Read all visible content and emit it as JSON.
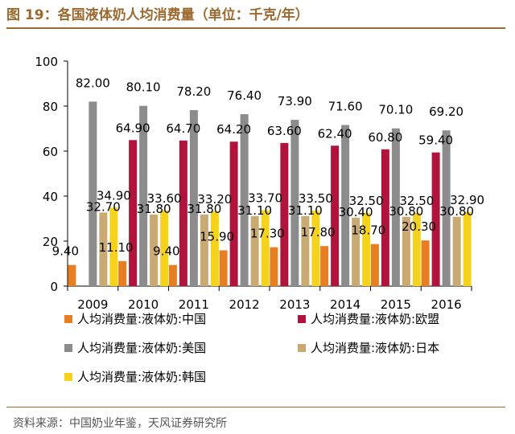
{
  "header": {
    "title": "图 19：各国液体奶人均消费量（单位：千克/年）"
  },
  "footer": {
    "source": "资料来源：中国奶业年鉴，天风证券研究所"
  },
  "chart_data": {
    "type": "bar",
    "categories": [
      "2009",
      "2010",
      "2011",
      "2012",
      "2013",
      "2014",
      "2015",
      "2016"
    ],
    "ylim": [
      0,
      100
    ],
    "yticks": [
      0,
      20,
      40,
      60,
      80,
      100
    ],
    "legend_position": "bottom",
    "series": [
      {
        "name": "人均消费量:液体奶:中国",
        "color": "#e67e22",
        "values": [
          9.4,
          11.1,
          9.4,
          15.9,
          17.3,
          17.8,
          18.7,
          20.3
        ],
        "labels": [
          "9.40",
          "11.10",
          "9.40",
          "15.90",
          "17.30",
          "17.80",
          "18.70",
          "20.30"
        ]
      },
      {
        "name": "人均消费量:液体奶:欧盟",
        "color": "#b0143c",
        "values": [
          0,
          64.9,
          64.7,
          64.2,
          63.6,
          62.4,
          60.8,
          59.4
        ],
        "labels": [
          "",
          "64.90",
          "64.70",
          "64.20",
          "63.60",
          "62.40",
          "60.80",
          "59.40"
        ]
      },
      {
        "name": "人均消费量:液体奶:美国",
        "color": "#8c8c8c",
        "values": [
          82.0,
          80.1,
          78.2,
          76.4,
          73.9,
          71.6,
          70.1,
          69.2
        ],
        "labels": [
          "82.00",
          "80.10",
          "78.20",
          "76.40",
          "73.90",
          "71.60",
          "70.10",
          "69.20"
        ]
      },
      {
        "name": "人均消费量:液体奶:日本",
        "color": "#c8aa72",
        "values": [
          32.7,
          31.8,
          31.8,
          31.1,
          31.1,
          30.4,
          30.8,
          30.8
        ],
        "labels": [
          "32.70",
          "31.80",
          "31.80",
          "31.10",
          "31.10",
          "30.40",
          "30.80",
          "30.80"
        ]
      },
      {
        "name": "人均消费量:液体奶:韩国",
        "color": "#f5d21c",
        "values": [
          34.9,
          33.6,
          33.2,
          33.7,
          33.5,
          32.5,
          32.5,
          32.9
        ],
        "labels": [
          "34.90",
          "33.60",
          "33.20",
          "33.70",
          "33.50",
          "32.50",
          "32.50",
          "32.90"
        ]
      }
    ]
  }
}
